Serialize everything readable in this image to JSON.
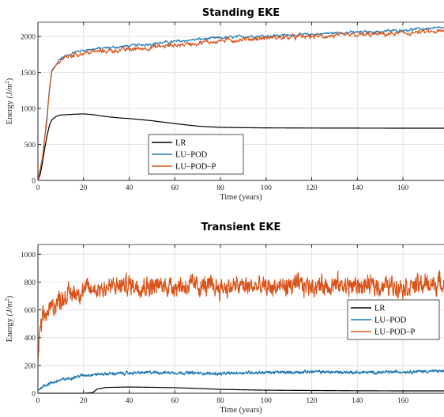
{
  "chart_data": [
    {
      "type": "line",
      "title": "Standing EKE",
      "xlabel": "Time (years)",
      "ylabel": "Energy (J/m²)",
      "ylabel_parts": {
        "pre": "Energy ",
        "var": "(J/m",
        "sup": "2",
        "post": ")"
      },
      "xlim": [
        0,
        178
      ],
      "ylim": [
        0,
        2200
      ],
      "xticks": [
        0,
        20,
        40,
        60,
        80,
        100,
        120,
        140,
        160
      ],
      "yticks": [
        0,
        500,
        1000,
        1500,
        2000
      ],
      "grid": true,
      "legend_position": "lower-center",
      "series": [
        {
          "name": "LR",
          "color": "#000000",
          "x": [
            0,
            1,
            2,
            3,
            4,
            5,
            6,
            8,
            10,
            13,
            16,
            20,
            24,
            28,
            32,
            36,
            40,
            45,
            50,
            55,
            60,
            65,
            70,
            75,
            80,
            90,
            100,
            110,
            120,
            140,
            160,
            178
          ],
          "y": [
            0,
            80,
            250,
            450,
            620,
            760,
            840,
            890,
            910,
            915,
            920,
            925,
            915,
            895,
            880,
            868,
            860,
            845,
            830,
            810,
            790,
            772,
            755,
            745,
            738,
            733,
            730,
            729,
            728,
            727,
            726,
            726
          ]
        },
        {
          "name": "LU–POD",
          "color": "#1f77b4",
          "x": [
            0,
            2,
            4,
            5,
            6,
            8,
            10,
            13,
            16,
            20,
            25,
            30,
            40,
            50,
            60,
            70,
            80,
            90,
            100,
            110,
            120,
            130,
            140,
            150,
            160,
            170,
            178
          ],
          "y": [
            0,
            300,
            900,
            1250,
            1500,
            1620,
            1700,
            1740,
            1780,
            1810,
            1830,
            1840,
            1870,
            1900,
            1930,
            1960,
            1980,
            2000,
            2010,
            2020,
            2030,
            2050,
            2060,
            2070,
            2090,
            2110,
            2120
          ]
        },
        {
          "name": "LU–POD–P",
          "color": "#d95319",
          "x": [
            0,
            2,
            4,
            5,
            6,
            8,
            10,
            13,
            16,
            20,
            25,
            30,
            40,
            50,
            60,
            70,
            80,
            90,
            100,
            110,
            120,
            130,
            140,
            150,
            160,
            170,
            178
          ],
          "y": [
            0,
            290,
            880,
            1230,
            1480,
            1600,
            1680,
            1720,
            1750,
            1770,
            1790,
            1800,
            1820,
            1850,
            1880,
            1910,
            1940,
            1960,
            1980,
            1990,
            2000,
            2010,
            2020,
            2030,
            2045,
            2060,
            2070
          ]
        }
      ]
    },
    {
      "type": "line",
      "title": "Transient EKE",
      "xlabel": "Time (years)",
      "ylabel": "Energy (J/m²)",
      "ylabel_parts": {
        "pre": "Energy ",
        "var": "(J/m",
        "sup": "2",
        "post": ")"
      },
      "xlim": [
        0,
        178
      ],
      "ylim": [
        0,
        1070
      ],
      "xticks": [
        0,
        20,
        40,
        60,
        80,
        100,
        120,
        140,
        160
      ],
      "yticks": [
        0,
        200,
        400,
        600,
        800,
        1000
      ],
      "grid": true,
      "legend_position": "right",
      "series": [
        {
          "name": "LR",
          "color": "#000000",
          "x": [
            0,
            10,
            20,
            24,
            26,
            30,
            40,
            50,
            60,
            70,
            80,
            90,
            100,
            120,
            140,
            160,
            178
          ],
          "y": [
            0,
            0,
            0,
            5,
            30,
            42,
            45,
            43,
            40,
            35,
            28,
            25,
            22,
            20,
            18,
            17,
            17
          ]
        },
        {
          "name": "LU–POD",
          "color": "#1f77b4",
          "x": [
            0,
            2,
            5,
            10,
            20,
            30,
            40,
            50,
            60,
            70,
            80,
            90,
            100,
            110,
            120,
            130,
            140,
            150,
            160,
            170,
            178
          ],
          "y": [
            20,
            50,
            70,
            95,
            130,
            140,
            145,
            150,
            148,
            145,
            140,
            148,
            150,
            150,
            155,
            152,
            150,
            150,
            155,
            158,
            160
          ]
        },
        {
          "name": "LU–POD–P",
          "color": "#d95319",
          "x": [
            0,
            1,
            2,
            4,
            6,
            10,
            15,
            20,
            30,
            40,
            50,
            60,
            70,
            80,
            90,
            100,
            110,
            120,
            130,
            140,
            150,
            160,
            170,
            178
          ],
          "y": [
            250,
            450,
            520,
            580,
            620,
            680,
            720,
            740,
            760,
            780,
            770,
            775,
            770,
            760,
            770,
            760,
            770,
            775,
            780,
            770,
            775,
            770,
            780,
            790
          ]
        }
      ]
    }
  ]
}
